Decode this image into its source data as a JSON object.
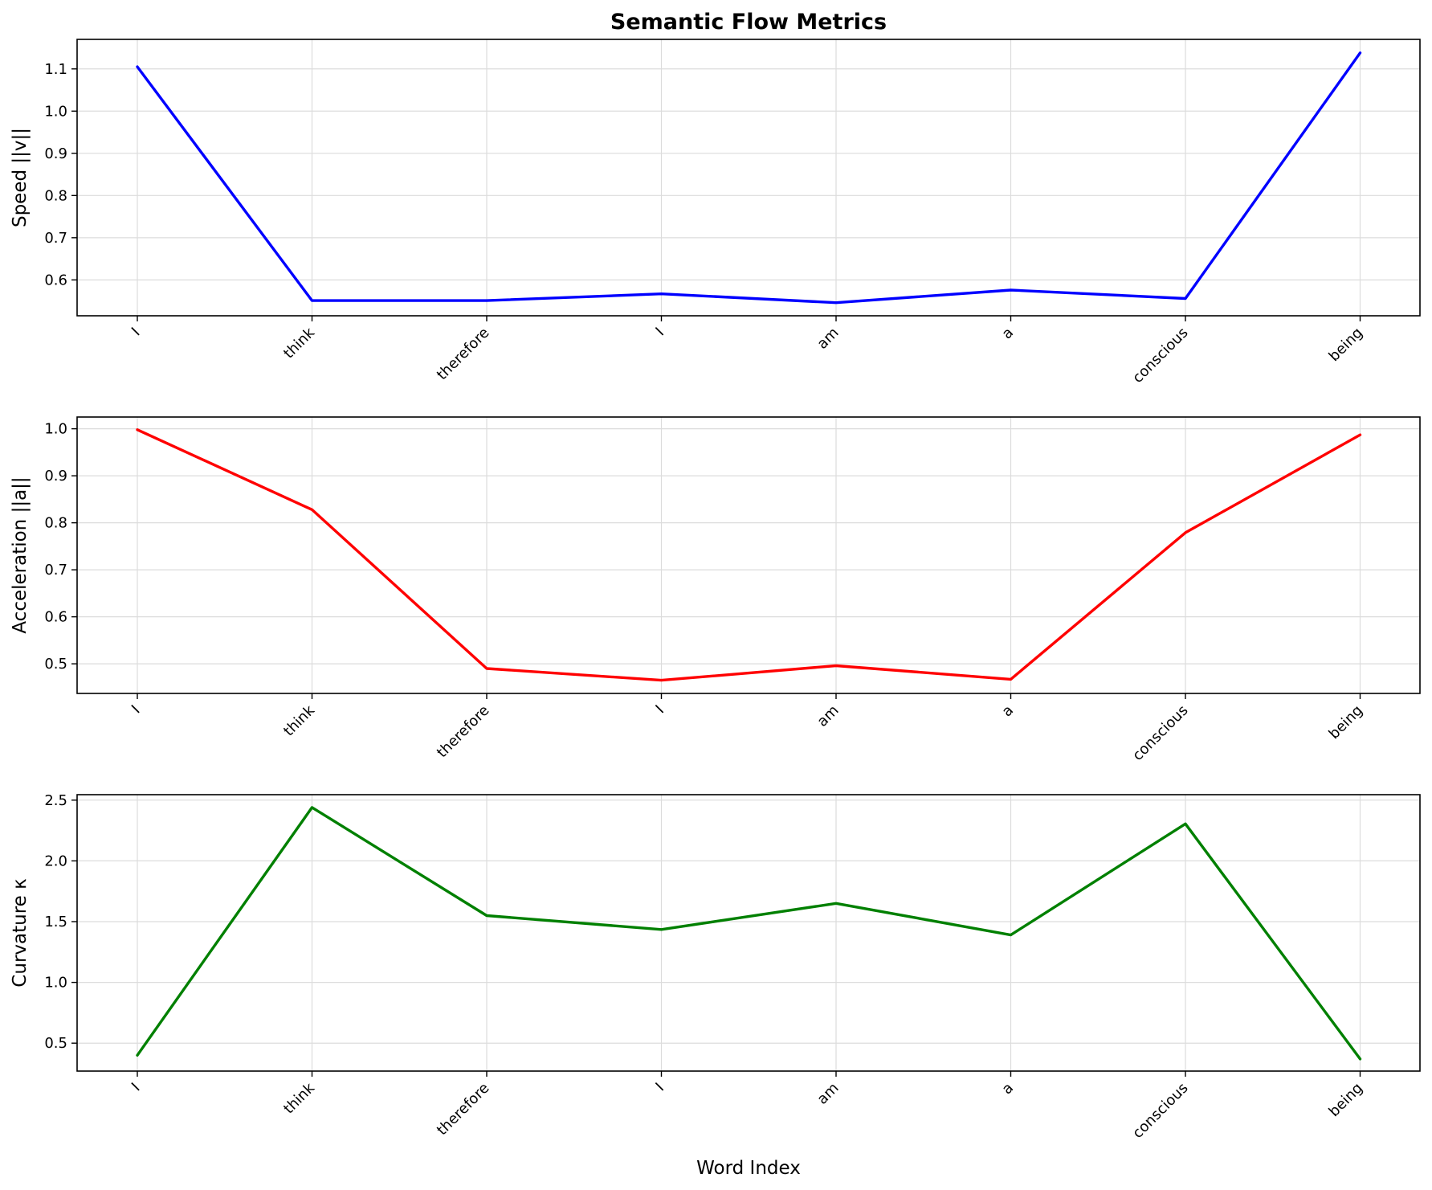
{
  "title": "Semantic Flow Metrics",
  "chart_data": [
    {
      "type": "line",
      "categories": [
        "I",
        "think",
        "therefore",
        "I",
        "am",
        "a",
        "conscious",
        "being"
      ],
      "series": [
        {
          "values": [
            1.105,
            0.551,
            0.551,
            0.567,
            0.546,
            0.576,
            0.556,
            1.138
          ],
          "color": "#0000ff"
        }
      ],
      "xlabel": "",
      "ylabel": "Speed ||v||",
      "ylim": [
        0.515,
        1.17
      ],
      "yticks": [
        0.6,
        0.7,
        0.8,
        0.9,
        1.0,
        1.1
      ],
      "ytick_labels": [
        "0.6",
        "0.7",
        "0.8",
        "0.9",
        "1.0",
        "1.1"
      ],
      "grid": true
    },
    {
      "type": "line",
      "categories": [
        "I",
        "think",
        "therefore",
        "I",
        "am",
        "a",
        "conscious",
        "being"
      ],
      "series": [
        {
          "values": [
            0.998,
            0.828,
            0.49,
            0.465,
            0.496,
            0.467,
            0.779,
            0.987
          ],
          "color": "#ff0000"
        }
      ],
      "xlabel": "",
      "ylabel": "Acceleration ||a||",
      "ylim": [
        0.437,
        1.025
      ],
      "yticks": [
        0.5,
        0.6,
        0.7,
        0.8,
        0.9,
        1.0
      ],
      "ytick_labels": [
        "0.5",
        "0.6",
        "0.7",
        "0.8",
        "0.9",
        "1.0"
      ],
      "grid": true
    },
    {
      "type": "line",
      "categories": [
        "I",
        "think",
        "therefore",
        "I",
        "am",
        "a",
        "conscious",
        "being"
      ],
      "series": [
        {
          "values": [
            0.4,
            2.44,
            1.55,
            1.435,
            1.65,
            1.39,
            2.305,
            0.37
          ],
          "color": "#008000"
        }
      ],
      "xlabel": "Word Index",
      "ylabel": "Curvature κ",
      "ylim": [
        0.27,
        2.545
      ],
      "yticks": [
        0.5,
        1.0,
        1.5,
        2.0,
        2.5
      ],
      "ytick_labels": [
        "0.5",
        "1.0",
        "1.5",
        "2.0",
        "2.5"
      ],
      "grid": true
    }
  ]
}
